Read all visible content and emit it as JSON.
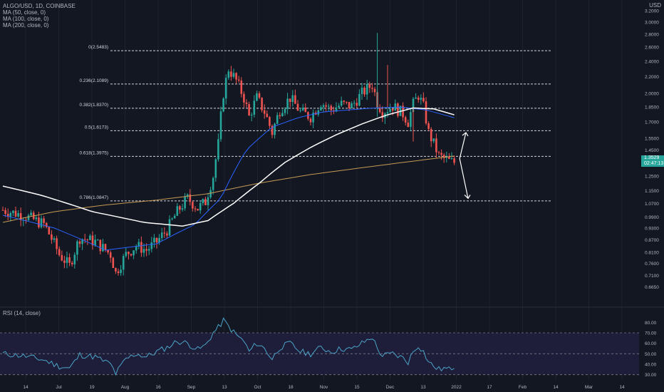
{
  "legend": {
    "symbol": "ALGO/USD, 1D, COINBASE",
    "ma50": "MA (50, close, 0)",
    "ma100": "MA (100, close, 0)",
    "ma200": "MA (200, close, 0)",
    "rsi": "RSI (14, close)"
  },
  "currency": "USD",
  "current_price": "1.3529",
  "countdown": "02:47:13",
  "colors": {
    "background": "#131722",
    "bull": "#26a69a",
    "bear": "#ef5350",
    "ma50": "#2962ff",
    "ma100": "#ffffff",
    "ma200": "#c69a52",
    "rsi_line": "#4ba3c7",
    "rsi_band": "#1e1e3a",
    "text": "#b2b5be"
  },
  "chart_data": {
    "type": "candlestick",
    "title": "ALGO/USD, 1D, COINBASE",
    "x_ticks": [
      "14",
      "Jul",
      "19",
      "Aug",
      "16",
      "Sep",
      "13",
      "Oct",
      "18",
      "Nov",
      "15",
      "Dec",
      "13",
      "2022",
      "17",
      "Feb",
      "14",
      "Mar",
      "14"
    ],
    "y_ticks": [
      "3.2000",
      "3.0000",
      "2.8000",
      "2.6000",
      "2.4000",
      "2.2000",
      "2.0000",
      "1.8500",
      "1.7000",
      "1.5500",
      "1.4500",
      "1.3500",
      "1.2500",
      "1.1500",
      "1.0700",
      "0.9900",
      "0.9300",
      "0.8700",
      "0.8100",
      "0.7600",
      "0.7100",
      "0.6650"
    ],
    "ylim": [
      0.6,
      3.4
    ],
    "y_scale": "log",
    "fib_levels": [
      {
        "label": "0(2.5483)",
        "value": 2.5483
      },
      {
        "label": "0.236(2.1089)",
        "value": 2.1089
      },
      {
        "label": "0.382(1.8370)",
        "value": 1.837
      },
      {
        "label": "0.5(1.6173)",
        "value": 1.6173
      },
      {
        "label": "0.618(1.3975)",
        "value": 1.3975
      },
      {
        "label": "0.786(1.0847)",
        "value": 1.0847
      }
    ],
    "annotations": [
      {
        "type": "arrow",
        "direction": "up",
        "from": 1.38,
        "to": 1.6
      },
      {
        "type": "arrow",
        "direction": "down",
        "from": 1.38,
        "to": 1.1
      }
    ],
    "candle_count": 190,
    "close_path": [
      [
        0,
        1.03
      ],
      [
        8,
        1.0
      ],
      [
        16,
        0.95
      ],
      [
        22,
        0.8
      ],
      [
        26,
        0.75
      ],
      [
        30,
        0.88
      ],
      [
        36,
        0.86
      ],
      [
        42,
        0.8
      ],
      [
        44,
        0.72
      ],
      [
        48,
        0.8
      ],
      [
        52,
        0.84
      ],
      [
        56,
        0.82
      ],
      [
        60,
        0.86
      ],
      [
        64,
        0.92
      ],
      [
        68,
        1.02
      ],
      [
        72,
        1.1
      ],
      [
        76,
        1.04
      ],
      [
        79,
        1.08
      ],
      [
        82,
        1.25
      ],
      [
        84,
        1.5
      ],
      [
        86,
        2.0
      ],
      [
        88,
        2.3
      ],
      [
        91,
        2.15
      ],
      [
        94,
        1.95
      ],
      [
        96,
        1.75
      ],
      [
        99,
        1.95
      ],
      [
        102,
        1.8
      ],
      [
        105,
        1.6
      ],
      [
        108,
        1.82
      ],
      [
        112,
        1.95
      ],
      [
        116,
        1.8
      ],
      [
        120,
        1.75
      ],
      [
        124,
        1.9
      ],
      [
        128,
        1.82
      ],
      [
        132,
        1.88
      ],
      [
        136,
        1.86
      ],
      [
        140,
        2.0
      ],
      [
        144,
        2.1
      ],
      [
        146,
        1.9
      ],
      [
        148,
        1.8
      ],
      [
        152,
        1.86
      ],
      [
        156,
        1.78
      ],
      [
        158,
        1.7
      ],
      [
        160,
        1.88
      ],
      [
        162,
        1.98
      ],
      [
        164,
        1.85
      ],
      [
        166,
        1.6
      ],
      [
        168,
        1.5
      ],
      [
        170,
        1.4
      ],
      [
        172,
        1.38
      ],
      [
        174,
        1.36
      ],
      [
        176,
        1.35
      ]
    ],
    "ma50_path": [
      [
        0,
        1.0
      ],
      [
        20,
        0.93
      ],
      [
        40,
        0.82
      ],
      [
        60,
        0.85
      ],
      [
        75,
        0.95
      ],
      [
        85,
        1.1
      ],
      [
        95,
        1.45
      ],
      [
        105,
        1.65
      ],
      [
        115,
        1.74
      ],
      [
        125,
        1.8
      ],
      [
        135,
        1.82
      ],
      [
        145,
        1.84
      ],
      [
        155,
        1.85
      ],
      [
        165,
        1.82
      ],
      [
        176,
        1.74
      ]
    ],
    "ma100_path": [
      [
        0,
        1.18
      ],
      [
        15,
        1.12
      ],
      [
        35,
        1.02
      ],
      [
        55,
        0.96
      ],
      [
        70,
        0.94
      ],
      [
        80,
        0.97
      ],
      [
        90,
        1.07
      ],
      [
        100,
        1.2
      ],
      [
        110,
        1.35
      ],
      [
        120,
        1.47
      ],
      [
        130,
        1.58
      ],
      [
        140,
        1.68
      ],
      [
        150,
        1.77
      ],
      [
        160,
        1.84
      ],
      [
        168,
        1.83
      ],
      [
        176,
        1.77
      ]
    ],
    "ma200_path": [
      [
        0,
        0.96
      ],
      [
        20,
        1.02
      ],
      [
        40,
        1.06
      ],
      [
        60,
        1.09
      ],
      [
        80,
        1.13
      ],
      [
        100,
        1.2
      ],
      [
        120,
        1.26
      ],
      [
        140,
        1.31
      ],
      [
        160,
        1.36
      ],
      [
        176,
        1.4
      ]
    ],
    "rsi": {
      "ylim": [
        25,
        85
      ],
      "y_ticks": [
        "80.00",
        "70.00",
        "60.00",
        "50.00",
        "40.00",
        "30.00"
      ],
      "band": [
        30,
        70
      ],
      "path": [
        [
          0,
          50
        ],
        [
          8,
          48
        ],
        [
          16,
          44
        ],
        [
          22,
          38
        ],
        [
          26,
          36
        ],
        [
          30,
          49
        ],
        [
          36,
          47
        ],
        [
          42,
          40
        ],
        [
          44,
          31
        ],
        [
          48,
          45
        ],
        [
          52,
          50
        ],
        [
          56,
          47
        ],
        [
          60,
          52
        ],
        [
          64,
          56
        ],
        [
          68,
          62
        ],
        [
          72,
          60
        ],
        [
          76,
          54
        ],
        [
          79,
          58
        ],
        [
          82,
          70
        ],
        [
          84,
          75
        ],
        [
          86,
          82
        ],
        [
          88,
          76
        ],
        [
          91,
          68
        ],
        [
          94,
          62
        ],
        [
          96,
          52
        ],
        [
          99,
          60
        ],
        [
          102,
          55
        ],
        [
          105,
          45
        ],
        [
          108,
          56
        ],
        [
          112,
          60
        ],
        [
          116,
          52
        ],
        [
          120,
          50
        ],
        [
          124,
          56
        ],
        [
          128,
          52
        ],
        [
          132,
          55
        ],
        [
          136,
          54
        ],
        [
          140,
          60
        ],
        [
          144,
          66
        ],
        [
          146,
          55
        ],
        [
          148,
          48
        ],
        [
          152,
          50
        ],
        [
          156,
          46
        ],
        [
          158,
          42
        ],
        [
          160,
          52
        ],
        [
          162,
          58
        ],
        [
          164,
          52
        ],
        [
          166,
          42
        ],
        [
          168,
          38
        ],
        [
          170,
          35
        ],
        [
          172,
          36
        ],
        [
          174,
          35
        ],
        [
          176,
          38
        ]
      ]
    }
  }
}
